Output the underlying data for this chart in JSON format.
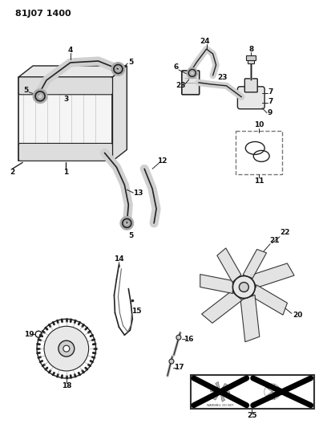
{
  "title": "81J07 1400",
  "bg_color": "#ffffff",
  "line_color": "#222222",
  "fig_width": 4.14,
  "fig_height": 5.33,
  "dpi": 100
}
